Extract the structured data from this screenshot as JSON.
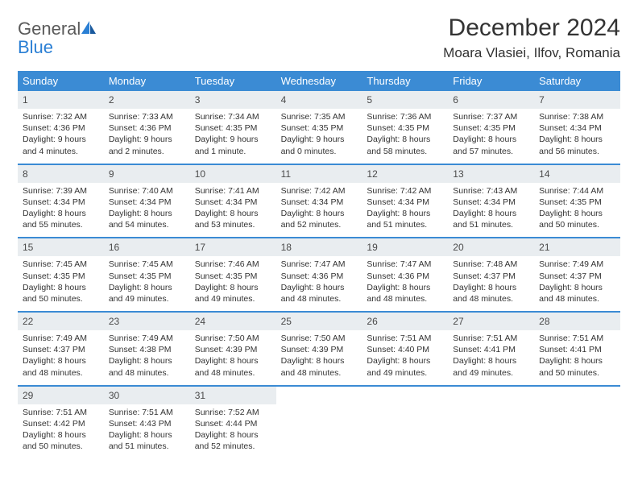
{
  "brand": {
    "word1": "General",
    "word2": "Blue"
  },
  "title": "December 2024",
  "location": "Moara Vlasiei, Ilfov, Romania",
  "colors": {
    "header_blue": "#3b8bd4",
    "daynum_bg": "#e9edf0",
    "logo_gray": "#5a5a5a",
    "logo_blue": "#2a7fd4",
    "text": "#333333"
  },
  "weekdays": [
    "Sunday",
    "Monday",
    "Tuesday",
    "Wednesday",
    "Thursday",
    "Friday",
    "Saturday"
  ],
  "weeks": [
    [
      {
        "n": "1",
        "sr": "7:32 AM",
        "ss": "4:36 PM",
        "dl": "9 hours and 4 minutes."
      },
      {
        "n": "2",
        "sr": "7:33 AM",
        "ss": "4:36 PM",
        "dl": "9 hours and 2 minutes."
      },
      {
        "n": "3",
        "sr": "7:34 AM",
        "ss": "4:35 PM",
        "dl": "9 hours and 1 minute."
      },
      {
        "n": "4",
        "sr": "7:35 AM",
        "ss": "4:35 PM",
        "dl": "9 hours and 0 minutes."
      },
      {
        "n": "5",
        "sr": "7:36 AM",
        "ss": "4:35 PM",
        "dl": "8 hours and 58 minutes."
      },
      {
        "n": "6",
        "sr": "7:37 AM",
        "ss": "4:35 PM",
        "dl": "8 hours and 57 minutes."
      },
      {
        "n": "7",
        "sr": "7:38 AM",
        "ss": "4:34 PM",
        "dl": "8 hours and 56 minutes."
      }
    ],
    [
      {
        "n": "8",
        "sr": "7:39 AM",
        "ss": "4:34 PM",
        "dl": "8 hours and 55 minutes."
      },
      {
        "n": "9",
        "sr": "7:40 AM",
        "ss": "4:34 PM",
        "dl": "8 hours and 54 minutes."
      },
      {
        "n": "10",
        "sr": "7:41 AM",
        "ss": "4:34 PM",
        "dl": "8 hours and 53 minutes."
      },
      {
        "n": "11",
        "sr": "7:42 AM",
        "ss": "4:34 PM",
        "dl": "8 hours and 52 minutes."
      },
      {
        "n": "12",
        "sr": "7:42 AM",
        "ss": "4:34 PM",
        "dl": "8 hours and 51 minutes."
      },
      {
        "n": "13",
        "sr": "7:43 AM",
        "ss": "4:34 PM",
        "dl": "8 hours and 51 minutes."
      },
      {
        "n": "14",
        "sr": "7:44 AM",
        "ss": "4:35 PM",
        "dl": "8 hours and 50 minutes."
      }
    ],
    [
      {
        "n": "15",
        "sr": "7:45 AM",
        "ss": "4:35 PM",
        "dl": "8 hours and 50 minutes."
      },
      {
        "n": "16",
        "sr": "7:45 AM",
        "ss": "4:35 PM",
        "dl": "8 hours and 49 minutes."
      },
      {
        "n": "17",
        "sr": "7:46 AM",
        "ss": "4:35 PM",
        "dl": "8 hours and 49 minutes."
      },
      {
        "n": "18",
        "sr": "7:47 AM",
        "ss": "4:36 PM",
        "dl": "8 hours and 48 minutes."
      },
      {
        "n": "19",
        "sr": "7:47 AM",
        "ss": "4:36 PM",
        "dl": "8 hours and 48 minutes."
      },
      {
        "n": "20",
        "sr": "7:48 AM",
        "ss": "4:37 PM",
        "dl": "8 hours and 48 minutes."
      },
      {
        "n": "21",
        "sr": "7:49 AM",
        "ss": "4:37 PM",
        "dl": "8 hours and 48 minutes."
      }
    ],
    [
      {
        "n": "22",
        "sr": "7:49 AM",
        "ss": "4:37 PM",
        "dl": "8 hours and 48 minutes."
      },
      {
        "n": "23",
        "sr": "7:49 AM",
        "ss": "4:38 PM",
        "dl": "8 hours and 48 minutes."
      },
      {
        "n": "24",
        "sr": "7:50 AM",
        "ss": "4:39 PM",
        "dl": "8 hours and 48 minutes."
      },
      {
        "n": "25",
        "sr": "7:50 AM",
        "ss": "4:39 PM",
        "dl": "8 hours and 48 minutes."
      },
      {
        "n": "26",
        "sr": "7:51 AM",
        "ss": "4:40 PM",
        "dl": "8 hours and 49 minutes."
      },
      {
        "n": "27",
        "sr": "7:51 AM",
        "ss": "4:41 PM",
        "dl": "8 hours and 49 minutes."
      },
      {
        "n": "28",
        "sr": "7:51 AM",
        "ss": "4:41 PM",
        "dl": "8 hours and 50 minutes."
      }
    ],
    [
      {
        "n": "29",
        "sr": "7:51 AM",
        "ss": "4:42 PM",
        "dl": "8 hours and 50 minutes."
      },
      {
        "n": "30",
        "sr": "7:51 AM",
        "ss": "4:43 PM",
        "dl": "8 hours and 51 minutes."
      },
      {
        "n": "31",
        "sr": "7:52 AM",
        "ss": "4:44 PM",
        "dl": "8 hours and 52 minutes."
      },
      null,
      null,
      null,
      null
    ]
  ],
  "labels": {
    "sunrise": "Sunrise: ",
    "sunset": "Sunset: ",
    "daylight": "Daylight: "
  }
}
